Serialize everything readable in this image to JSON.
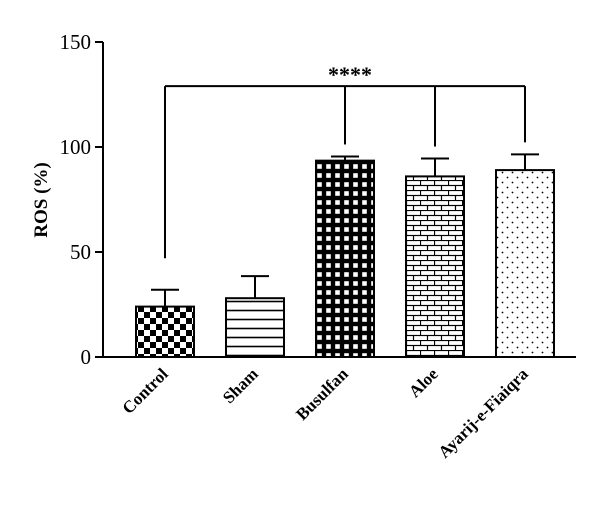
{
  "chart_data": {
    "type": "bar",
    "title": "",
    "xlabel": "",
    "ylabel": "ROS (%)",
    "ylim": [
      0,
      150
    ],
    "yticks": [
      0,
      50,
      100,
      150
    ],
    "grid": false,
    "categories": [
      "Control",
      "Sham",
      "Busulfan",
      "Aloe",
      "Ayarij-e-Fiaiqra"
    ],
    "values": [
      24,
      28,
      93.5,
      86,
      89
    ],
    "error": [
      8,
      10.5,
      2,
      8.5,
      7.5
    ],
    "patterns": [
      "checkerboard",
      "horizontal-lines",
      "grid",
      "brick",
      "dots"
    ],
    "significance": {
      "label": "****",
      "from": "Control",
      "to": [
        "Busulfan",
        "Aloe",
        "Ayarij-e-Fiaiqra"
      ]
    }
  }
}
